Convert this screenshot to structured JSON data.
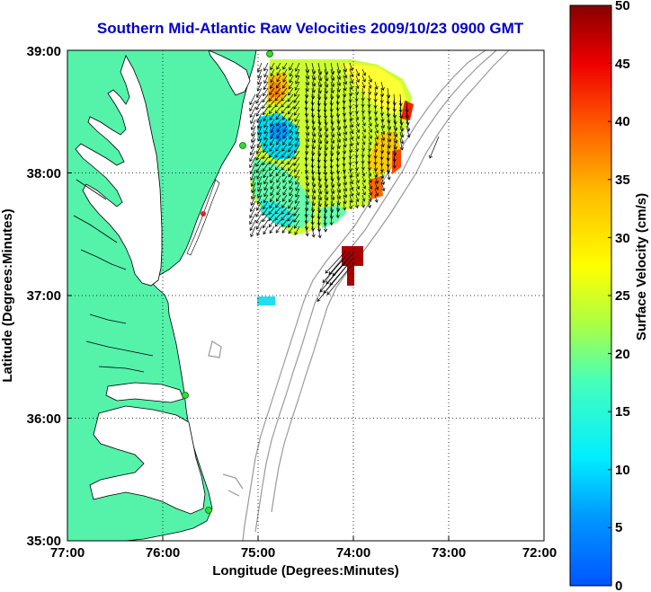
{
  "title": "Southern Mid-Atlantic Raw Velocities 2009/10/23 0900 GMT",
  "x_axis": {
    "label": "Longitude (Degrees:Minutes)",
    "ticks": [
      "77:00",
      "76:00",
      "75:00",
      "74:00",
      "73:00",
      "72:00"
    ]
  },
  "y_axis": {
    "label": "Latitude (Degrees:Minutes)",
    "ticks": [
      "39:00",
      "38:00",
      "37:00",
      "36:00",
      "35:00"
    ]
  },
  "colorbar": {
    "label": "Surface Velocity (cm/s)",
    "ticks": [
      "50",
      "45",
      "40",
      "35",
      "30",
      "25",
      "20",
      "15",
      "10",
      "5",
      "0"
    ],
    "range": [
      0,
      50
    ]
  },
  "map_extent": {
    "lon": [
      -77,
      -72
    ],
    "lat": [
      35,
      39
    ]
  },
  "colors": {
    "title": "#0000cc",
    "land": "#55f2aa",
    "water": "#ffffff",
    "bathymetry": "#999999",
    "stations": "#33dd33"
  },
  "icons": {
    "station": "green-dot-station-marker",
    "vector": "velocity-arrow"
  }
}
